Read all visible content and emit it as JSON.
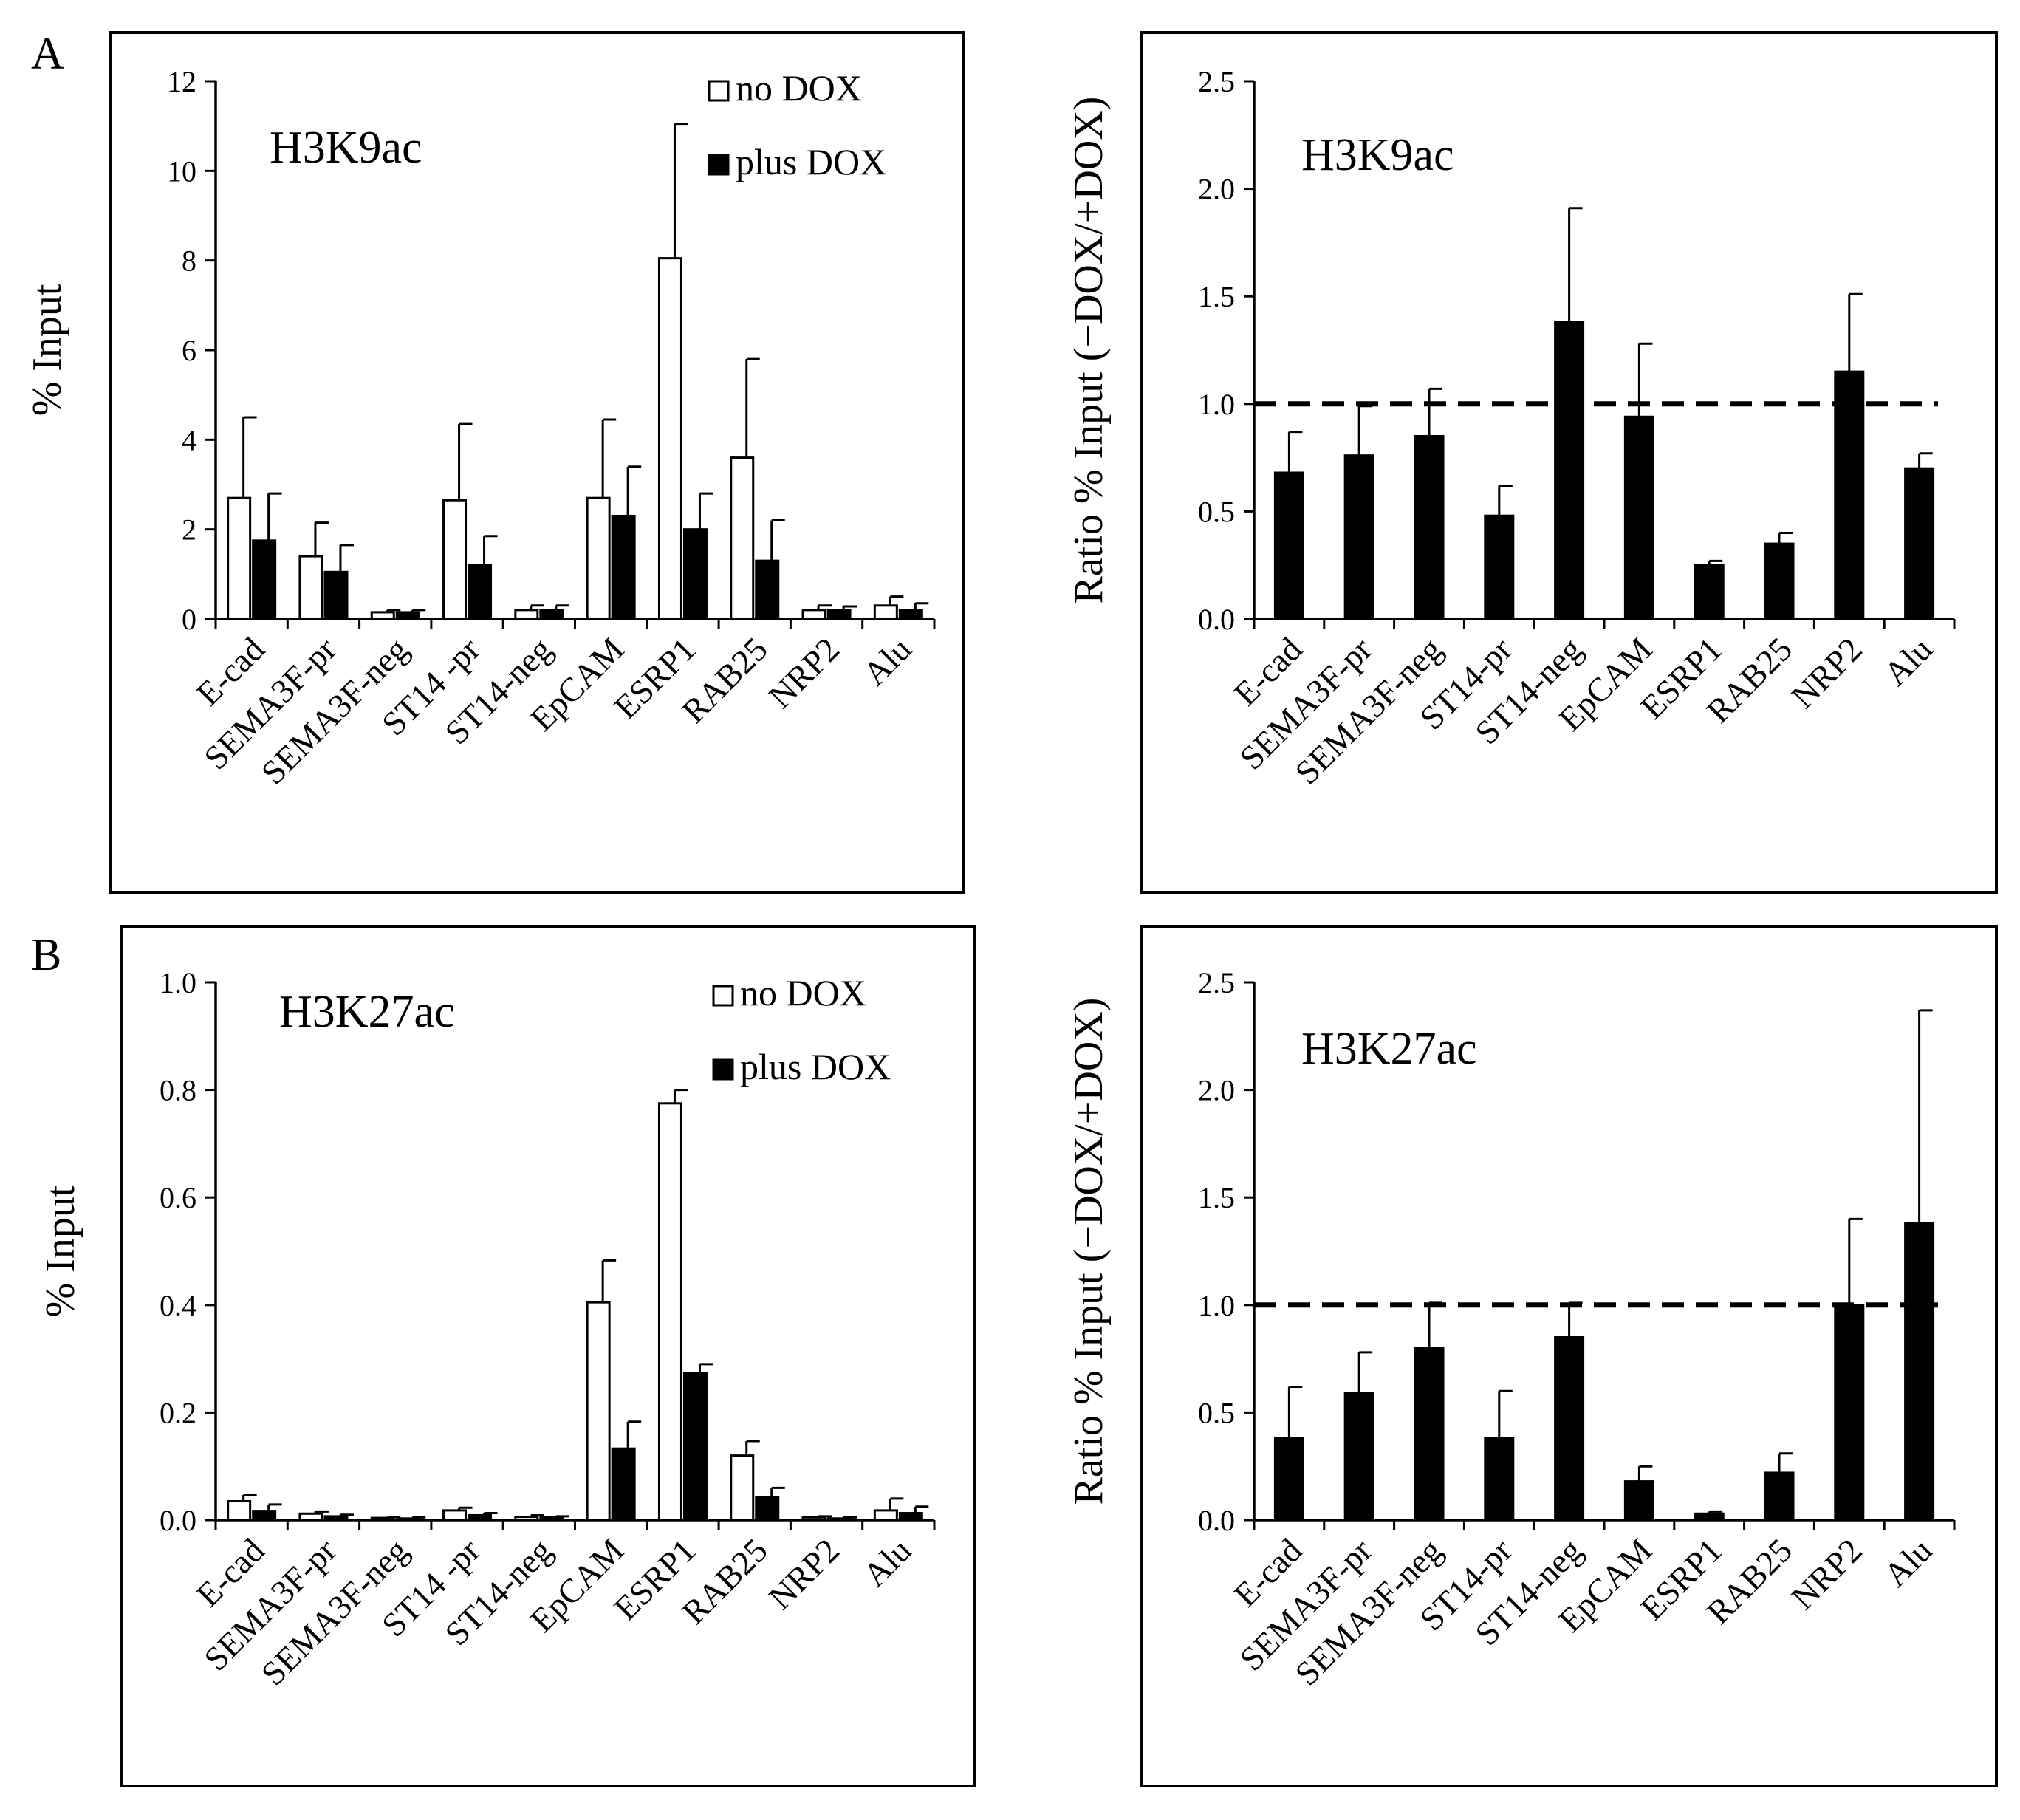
{
  "figure": {
    "panel_labels": [
      "A",
      "B"
    ]
  },
  "chart_data": [
    {
      "id": "A-left",
      "type": "bar",
      "title": "H3K9ac",
      "ylabel": "% Input",
      "xlabel": "",
      "ylim": [
        0,
        12
      ],
      "ytick_labels": [
        "0",
        "2",
        "4",
        "6",
        "8",
        "10",
        "12"
      ],
      "legend": {
        "placement": "top-right"
      },
      "categories": [
        "E-cad",
        "SEMA3F-pr",
        "SEMA3F-neg",
        "ST14 -pr",
        "ST14-neg",
        "EpCAM",
        "ESRP1",
        "RAB25",
        "NRP2",
        "Alu"
      ],
      "series": [
        {
          "name": "no DOX",
          "color": "#ffffff",
          "values": [
            2.7,
            1.4,
            0.15,
            2.65,
            0.2,
            2.7,
            8.05,
            3.6,
            0.2,
            0.3
          ],
          "errors": [
            1.8,
            0.75,
            0.05,
            1.7,
            0.1,
            1.75,
            3.0,
            2.2,
            0.1,
            0.2
          ]
        },
        {
          "name": "plus DOX",
          "color": "#000000",
          "values": [
            1.75,
            1.05,
            0.15,
            1.2,
            0.2,
            2.3,
            2.0,
            1.3,
            0.2,
            0.2
          ],
          "errors": [
            1.05,
            0.6,
            0.05,
            0.65,
            0.1,
            1.1,
            0.8,
            0.9,
            0.08,
            0.15
          ]
        }
      ]
    },
    {
      "id": "A-right",
      "type": "bar",
      "title": "H3K9ac",
      "ylabel": "Ratio % Input (−DOX/+DOX)",
      "xlabel": "",
      "ylim": [
        0,
        2.5
      ],
      "ytick_labels": [
        "0.0",
        "0.5",
        "1.0",
        "1.5",
        "2.0",
        "2.5"
      ],
      "reference_line": 1.0,
      "categories": [
        "E-cad",
        "SEMA3F-pr",
        "SEMA3F-neg",
        "ST14-pr",
        "ST14-neg",
        "EpCAM",
        "ESRP1",
        "RAB25",
        "NRP2",
        "Alu"
      ],
      "series": [
        {
          "name": "ratio",
          "color": "#000000",
          "values": [
            0.68,
            0.76,
            0.85,
            0.48,
            1.38,
            0.94,
            0.25,
            0.35,
            1.15,
            0.7
          ],
          "errors": [
            0.19,
            0.23,
            0.22,
            0.14,
            0.53,
            0.34,
            0.02,
            0.05,
            0.36,
            0.07
          ]
        }
      ]
    },
    {
      "id": "B-left",
      "type": "bar",
      "title": "H3K27ac",
      "ylabel": "% Input",
      "xlabel": "",
      "ylim": [
        0,
        1.0
      ],
      "ytick_labels": [
        "0.0",
        "0.2",
        "0.4",
        "0.6",
        "0.8",
        "1.0"
      ],
      "legend": {
        "placement": "top-right"
      },
      "categories": [
        "E-cad",
        "SEMA3F-pr",
        "SEMA3F-neg",
        "ST14 -pr",
        "ST14-neg",
        "EpCAM",
        "ESRP1",
        "RAB25",
        "NRP2",
        "Alu"
      ],
      "series": [
        {
          "name": "no DOX",
          "color": "#ffffff",
          "values": [
            0.035,
            0.012,
            0.004,
            0.018,
            0.006,
            0.405,
            0.775,
            0.12,
            0.005,
            0.018
          ],
          "errors": [
            0.012,
            0.004,
            0.002,
            0.005,
            0.003,
            0.078,
            0.025,
            0.027,
            0.002,
            0.022
          ]
        },
        {
          "name": "plus DOX",
          "color": "#000000",
          "values": [
            0.017,
            0.007,
            0.003,
            0.009,
            0.005,
            0.133,
            0.273,
            0.042,
            0.003,
            0.013
          ],
          "errors": [
            0.012,
            0.003,
            0.002,
            0.004,
            0.002,
            0.05,
            0.017,
            0.018,
            0.002,
            0.012
          ]
        }
      ]
    },
    {
      "id": "B-right",
      "type": "bar",
      "title": "H3K27ac",
      "ylabel": "Ratio % Input (−DOX/+DOX)",
      "xlabel": "",
      "ylim": [
        0,
        2.5
      ],
      "ytick_labels": [
        "0.0",
        "0.5",
        "1.0",
        "1.5",
        "2.0",
        "2.5"
      ],
      "reference_line": 1.0,
      "categories": [
        "E-cad",
        "SEMA3F-pr",
        "SEMA3F-neg",
        "ST14-pr",
        "ST14-neg",
        "EpCAM",
        "ESRP1",
        "RAB25",
        "NRP2",
        "Alu"
      ],
      "series": [
        {
          "name": "ratio",
          "color": "#000000",
          "values": [
            0.38,
            0.59,
            0.8,
            0.38,
            0.85,
            0.18,
            0.03,
            0.22,
            1.0,
            1.38
          ],
          "errors": [
            0.24,
            0.19,
            0.21,
            0.22,
            0.16,
            0.07,
            0.01,
            0.09,
            0.4,
            0.99
          ]
        }
      ]
    }
  ]
}
